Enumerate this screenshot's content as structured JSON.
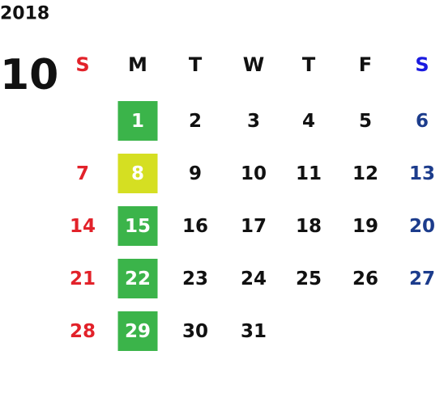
{
  "calendar": {
    "year": "2018",
    "month": "10",
    "weekdays": [
      {
        "label": "S",
        "color": "#e2222a"
      },
      {
        "label": "M",
        "color": "#111111"
      },
      {
        "label": "T",
        "color": "#111111"
      },
      {
        "label": "W",
        "color": "#111111"
      },
      {
        "label": "T",
        "color": "#111111"
      },
      {
        "label": "F",
        "color": "#111111"
      },
      {
        "label": "S",
        "color": "#1a1ae0"
      }
    ],
    "day_colors": [
      "#e2222a",
      "#111111",
      "#111111",
      "#111111",
      "#111111",
      "#111111",
      "#1c3c8c"
    ],
    "highlight_text_color": "#ffffff",
    "weeks": [
      [
        null,
        {
          "text": "1",
          "bg": "#3bb44a"
        },
        {
          "text": "2"
        },
        {
          "text": "3"
        },
        {
          "text": "4"
        },
        {
          "text": "5"
        },
        {
          "text": "6"
        }
      ],
      [
        {
          "text": "7"
        },
        {
          "text": "8",
          "bg": "#d5df22"
        },
        {
          "text": "9"
        },
        {
          "text": "10"
        },
        {
          "text": "11"
        },
        {
          "text": "12"
        },
        {
          "text": "13"
        }
      ],
      [
        {
          "text": "14"
        },
        {
          "text": "15",
          "bg": "#3bb44a"
        },
        {
          "text": "16"
        },
        {
          "text": "17"
        },
        {
          "text": "18"
        },
        {
          "text": "19"
        },
        {
          "text": "20"
        }
      ],
      [
        {
          "text": "21"
        },
        {
          "text": "22",
          "bg": "#3bb44a"
        },
        {
          "text": "23"
        },
        {
          "text": "24"
        },
        {
          "text": "25"
        },
        {
          "text": "26"
        },
        {
          "text": "27"
        }
      ],
      [
        {
          "text": "28"
        },
        {
          "text": "29",
          "bg": "#3bb44a"
        },
        {
          "text": "30"
        },
        {
          "text": "31"
        },
        null,
        null,
        null
      ]
    ]
  }
}
